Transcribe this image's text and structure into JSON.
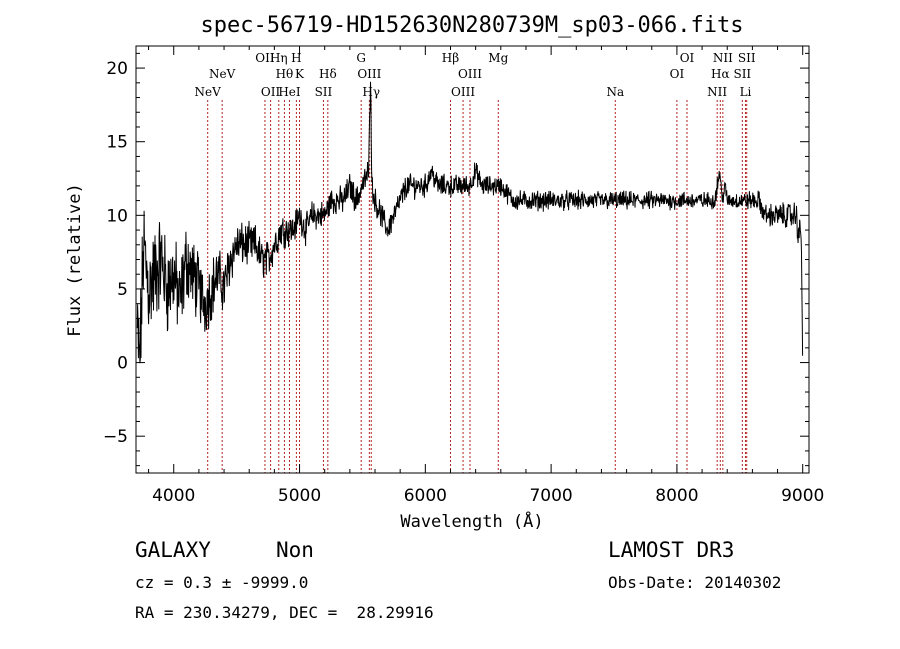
{
  "footer": {
    "class_label": "GALAXY",
    "subclass_label": "Non",
    "survey": "LAMOST DR3",
    "cz_line": "cz = 0.3 ± -9999.0",
    "obs_date": "Obs-Date: 20140302",
    "coords_line": "RA = 230.34279, DEC =  28.29916"
  },
  "chart_data": {
    "type": "line",
    "title": "spec-56719-HD152630N280739M_sp03-066.fits",
    "xlabel": "Wavelength (Å)",
    "ylabel": "Flux (relative)",
    "xlim": [
      3700,
      9050
    ],
    "ylim": [
      -7.5,
      21.5
    ],
    "xticks": [
      4000,
      5000,
      6000,
      7000,
      8000,
      9000
    ],
    "yticks": [
      -5,
      0,
      5,
      10,
      15,
      20
    ],
    "grid": false,
    "legend": "none",
    "line_color": "#000000",
    "marker_color": "#b22222",
    "spectrum_anchors": {
      "x": [
        3710,
        3730,
        3760,
        3800,
        3850,
        3900,
        3950,
        4000,
        4050,
        4100,
        4150,
        4200,
        4250,
        4300,
        4350,
        4400,
        4450,
        4500,
        4550,
        4600,
        4650,
        4700,
        4750,
        4800,
        4850,
        4900,
        4950,
        5000,
        5050,
        5100,
        5150,
        5200,
        5250,
        5300,
        5350,
        5400,
        5450,
        5500,
        5550,
        5565,
        5575,
        5600,
        5650,
        5700,
        5750,
        5800,
        5850,
        5900,
        5950,
        6000,
        6050,
        6100,
        6150,
        6200,
        6250,
        6300,
        6350,
        6400,
        6450,
        6500,
        6550,
        6600,
        6700,
        6800,
        6900,
        7000,
        7100,
        7200,
        7300,
        7400,
        7500,
        7600,
        7700,
        7800,
        7900,
        8000,
        8100,
        8200,
        8300,
        8340,
        8360,
        8380,
        8400,
        8450,
        8500,
        8550,
        8600,
        8650,
        8700,
        8750,
        8800,
        8850,
        8900,
        8950,
        8960,
        8975,
        8990,
        9000
      ],
      "y": [
        2,
        0,
        8,
        5,
        6,
        7,
        5,
        6,
        4,
        7,
        6,
        5,
        4,
        5,
        6,
        5,
        7,
        8,
        8,
        8,
        8,
        7,
        7,
        8,
        9,
        9,
        9,
        10,
        9,
        10,
        10,
        10,
        11,
        11,
        11,
        12,
        11,
        12,
        13,
        20,
        12,
        11,
        10,
        9,
        10,
        11,
        12,
        12,
        12,
        12,
        13,
        12,
        12,
        12,
        12,
        12,
        12,
        13,
        12,
        12,
        12,
        12,
        11,
        11,
        11,
        11,
        11,
        11,
        11,
        11,
        11,
        11,
        11,
        11,
        11,
        11,
        11,
        11,
        11,
        13,
        11,
        12,
        11,
        11,
        11,
        11,
        11,
        11,
        10,
        10,
        10,
        10,
        10,
        10,
        9,
        9,
        8,
        0
      ]
    },
    "noise_amplitude_by_wavelength": {
      "x": [
        3700,
        4500,
        5000,
        6500,
        8500,
        9050
      ],
      "amp": [
        3.0,
        1.2,
        0.8,
        0.55,
        0.45,
        0.8
      ]
    },
    "emission_lines": [
      {
        "name": "NeV",
        "wavelength": 4270,
        "row": 3
      },
      {
        "name": "NeV",
        "wavelength": 4385,
        "row": 2
      },
      {
        "name": "OII",
        "wavelength": 4725,
        "row": 1
      },
      {
        "name": "OII",
        "wavelength": 4770,
        "row": 3
      },
      {
        "name": "Hη",
        "wavelength": 4835,
        "row": 1
      },
      {
        "name": "Hθ",
        "wavelength": 4880,
        "row": 2
      },
      {
        "name": "HeI",
        "wavelength": 4920,
        "row": 3
      },
      {
        "name": "H",
        "wavelength": 4975,
        "row": 1
      },
      {
        "name": "K",
        "wavelength": 5000,
        "row": 2
      },
      {
        "name": "SII",
        "wavelength": 5190,
        "row": 3
      },
      {
        "name": "Hδ",
        "wavelength": 5225,
        "row": 2
      },
      {
        "name": "G",
        "wavelength": 5490,
        "row": 1
      },
      {
        "name": "OIII",
        "wavelength": 5555,
        "row": 2
      },
      {
        "name": "Hγ",
        "wavelength": 5570,
        "row": 3
      },
      {
        "name": "Hβ",
        "wavelength": 6200,
        "row": 1
      },
      {
        "name": "OIII",
        "wavelength": 6300,
        "row": 3
      },
      {
        "name": "OIII",
        "wavelength": 6355,
        "row": 2
      },
      {
        "name": "Mg",
        "wavelength": 6580,
        "row": 1
      },
      {
        "name": "Na",
        "wavelength": 7510,
        "row": 3
      },
      {
        "name": "OI",
        "wavelength": 8000,
        "row": 2
      },
      {
        "name": "OI",
        "wavelength": 8080,
        "row": 1
      },
      {
        "name": "NII",
        "wavelength": 8320,
        "row": 3
      },
      {
        "name": "Hα",
        "wavelength": 8345,
        "row": 2
      },
      {
        "name": "NII",
        "wavelength": 8365,
        "row": 1
      },
      {
        "name": "SII",
        "wavelength": 8520,
        "row": 2
      },
      {
        "name": "Li",
        "wavelength": 8545,
        "row": 3
      },
      {
        "name": "SII",
        "wavelength": 8555,
        "row": 1
      }
    ]
  }
}
